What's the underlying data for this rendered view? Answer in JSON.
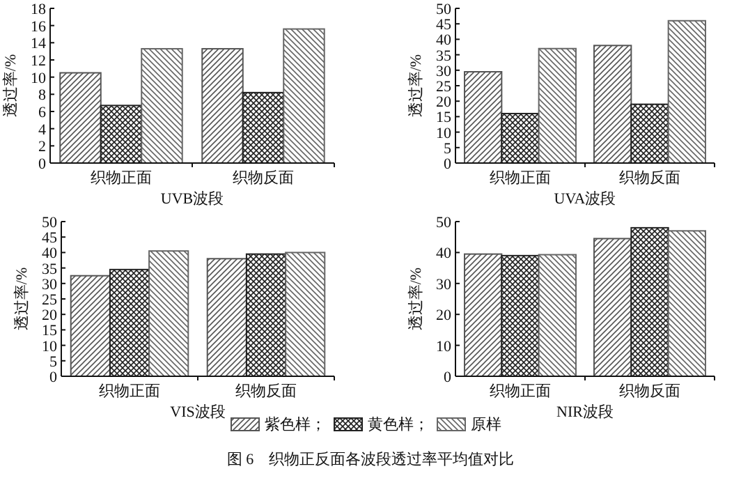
{
  "chart_data": [
    {
      "type": "bar",
      "xlabel": "UVB波段",
      "ylabel": "透过率/%",
      "categories": [
        "织物正面",
        "织物反面"
      ],
      "ylim": [
        0,
        18
      ],
      "yticks": [
        0,
        2,
        4,
        6,
        8,
        10,
        12,
        14,
        16,
        18
      ],
      "legend": false,
      "series": [
        {
          "color": "#555555",
          "values": [
            10.5,
            13.3
          ]
        },
        {
          "color": "#222222",
          "values": [
            6.7,
            8.2
          ]
        },
        {
          "color": "#666666",
          "values": [
            13.3,
            15.6
          ]
        }
      ]
    },
    {
      "type": "bar",
      "xlabel": "UVA波段",
      "ylabel": "透过率/%",
      "categories": [
        "织物正面",
        "织物反面"
      ],
      "ylim": [
        0,
        50
      ],
      "yticks": [
        0,
        5,
        10,
        15,
        20,
        25,
        30,
        35,
        40,
        45,
        50
      ],
      "legend": false,
      "series": [
        {
          "color": "#555555",
          "values": [
            29.5,
            38
          ]
        },
        {
          "color": "#222222",
          "values": [
            16,
            19
          ]
        },
        {
          "color": "#666666",
          "values": [
            37,
            46
          ]
        }
      ]
    },
    {
      "type": "bar",
      "xlabel": "VIS波段",
      "ylabel": "透过率/%",
      "categories": [
        "织物正面",
        "织物反面"
      ],
      "ylim": [
        0,
        50
      ],
      "yticks": [
        0,
        5,
        10,
        15,
        20,
        25,
        30,
        35,
        40,
        45,
        50
      ],
      "legend": false,
      "series": [
        {
          "color": "#555555",
          "values": [
            32.5,
            38
          ]
        },
        {
          "color": "#222222",
          "values": [
            34.5,
            39.5
          ]
        },
        {
          "color": "#666666",
          "values": [
            40.5,
            40
          ]
        }
      ]
    },
    {
      "type": "bar",
      "xlabel": "NIR波段",
      "ylabel": "透过率/%",
      "categories": [
        "织物正面",
        "织物反面"
      ],
      "ylim": [
        0,
        50
      ],
      "yticks": [
        0,
        10,
        20,
        30,
        40,
        50
      ],
      "legend": "bottom",
      "annotations": [
        "图 6　织物正反面各波段透过率平均值对比"
      ],
      "series": [
        {
          "name": "紫色样；",
          "color": "#555555",
          "values": [
            39.5,
            44.5
          ]
        },
        {
          "name": "黄色样；",
          "color": "#222222",
          "values": [
            39,
            48
          ]
        },
        {
          "name": "原样",
          "color": "#666666",
          "values": [
            39.3,
            47
          ]
        }
      ]
    }
  ]
}
